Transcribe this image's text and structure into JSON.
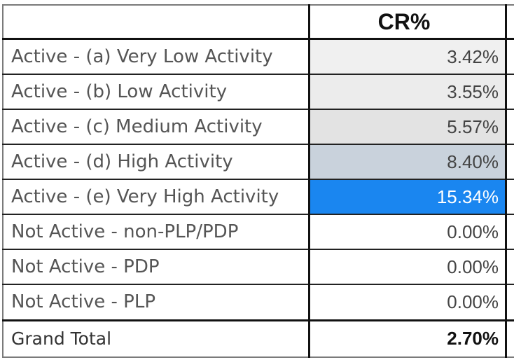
{
  "table": {
    "header": "CR%",
    "rows": [
      {
        "label": "Active - (a) Very Low Activity",
        "value": "3.42%",
        "fill": "#f0f0f0",
        "text_color": "#444444"
      },
      {
        "label": "Active - (b) Low Activity",
        "value": "3.55%",
        "fill": "#ececec",
        "text_color": "#444444"
      },
      {
        "label": "Active - (c) Medium Activity",
        "value": "5.57%",
        "fill": "#e3e3e3",
        "text_color": "#444444"
      },
      {
        "label": "Active - (d) High Activity",
        "value": "8.40%",
        "fill": "#c9d2dc",
        "text_color": "#444444"
      },
      {
        "label": "Active - (e) Very High Activity",
        "value": "15.34%",
        "fill": "#1a86f0",
        "text_color": "#ffffff"
      },
      {
        "label": "Not Active - non-PLP/PDP",
        "value": "0.00%",
        "fill": "#ffffff",
        "text_color": "#444444"
      },
      {
        "label": "Not Active - PDP",
        "value": "0.00%",
        "fill": "#ffffff",
        "text_color": "#444444"
      },
      {
        "label": "Not Active - PLP",
        "value": "0.00%",
        "fill": "#ffffff",
        "text_color": "#444444"
      }
    ],
    "total": {
      "label": "Grand Total",
      "value": "2.70%"
    }
  }
}
